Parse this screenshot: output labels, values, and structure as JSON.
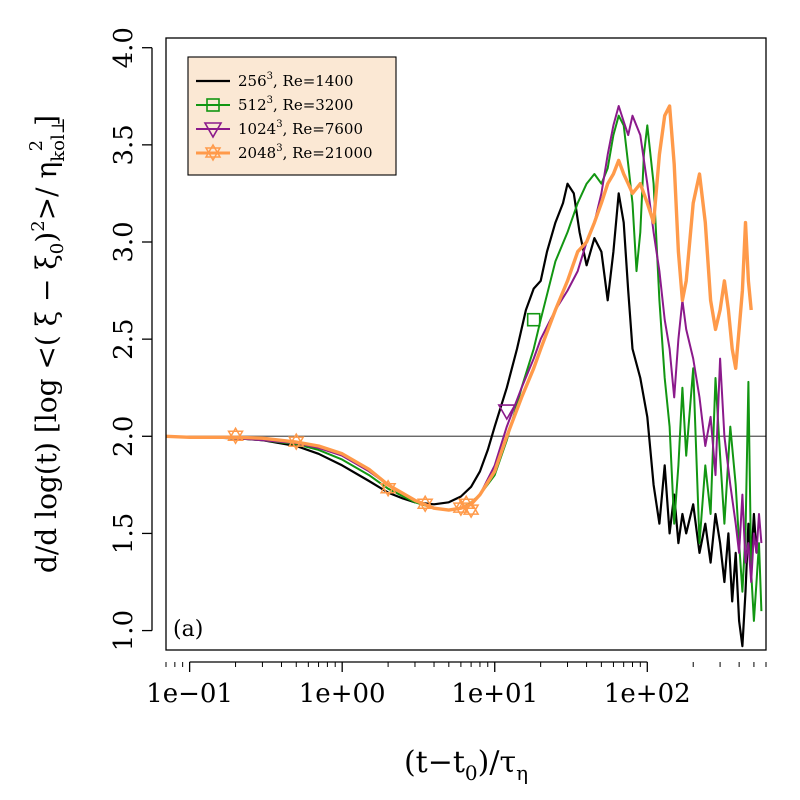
{
  "chart_data": {
    "type": "line",
    "panel_label": "(a)",
    "xlabel": "(t−t",
    "xlabel_sub": "0",
    "xlabel_end": ")/τ",
    "xlabel_sub2": "η",
    "ylabel": "d/d log(t) [log <( ξ − ξ",
    "ylabel_sub": "0",
    "ylabel_mid": ")",
    "ylabel_sup": "2",
    "ylabel_mid2": ">/ η",
    "ylabel_sub2": "kol⊥",
    "ylabel_sup2": "2",
    "ylabel_end": "]",
    "x_scale": "log",
    "xlim": [
      0.07,
      600
    ],
    "ylim": [
      0.9,
      4.05
    ],
    "x_ticks": [
      {
        "value": 0.1,
        "label": "1e−01"
      },
      {
        "value": 1,
        "label": "1e+00"
      },
      {
        "value": 10,
        "label": "1e+01"
      },
      {
        "value": 100,
        "label": "1e+02"
      }
    ],
    "y_ticks": [
      {
        "value": 1.0,
        "label": "1.0"
      },
      {
        "value": 1.5,
        "label": "1.5"
      },
      {
        "value": 2.0,
        "label": "2.0"
      },
      {
        "value": 2.5,
        "label": "2.5"
      },
      {
        "value": 3.0,
        "label": "3.0"
      },
      {
        "value": 3.5,
        "label": "3.5"
      },
      {
        "value": 4.0,
        "label": "4.0"
      }
    ],
    "reference_line_y": 2.0,
    "legend_position": "top-left",
    "legend_bg": "#fbe8d4",
    "series": [
      {
        "name_main": "256",
        "name_sup": "3",
        "name_rest": ", Re=1400",
        "color": "#000000",
        "width": 2.2,
        "marker": "none",
        "points": [
          [
            0.07,
            2.0
          ],
          [
            0.1,
            1.995
          ],
          [
            0.2,
            1.99
          ],
          [
            0.3,
            1.98
          ],
          [
            0.5,
            1.95
          ],
          [
            0.7,
            1.91
          ],
          [
            1,
            1.85
          ],
          [
            1.5,
            1.77
          ],
          [
            2,
            1.71
          ],
          [
            2.5,
            1.68
          ],
          [
            3,
            1.66
          ],
          [
            4,
            1.65
          ],
          [
            5,
            1.66
          ],
          [
            6,
            1.69
          ],
          [
            7,
            1.74
          ],
          [
            8,
            1.82
          ],
          [
            9,
            1.93
          ],
          [
            10,
            2.05
          ],
          [
            12,
            2.25
          ],
          [
            14,
            2.45
          ],
          [
            16,
            2.65
          ],
          [
            18,
            2.76
          ],
          [
            20,
            2.8
          ],
          [
            22,
            2.95
          ],
          [
            25,
            3.1
          ],
          [
            28,
            3.2
          ],
          [
            30,
            3.3
          ],
          [
            33,
            3.25
          ],
          [
            36,
            3.05
          ],
          [
            40,
            2.88
          ],
          [
            45,
            3.02
          ],
          [
            50,
            2.95
          ],
          [
            55,
            2.7
          ],
          [
            60,
            2.95
          ],
          [
            65,
            3.25
          ],
          [
            70,
            3.1
          ],
          [
            75,
            2.75
          ],
          [
            80,
            2.45
          ],
          [
            90,
            2.3
          ],
          [
            100,
            2.1
          ],
          [
            110,
            1.75
          ],
          [
            120,
            1.55
          ],
          [
            130,
            1.85
          ],
          [
            140,
            1.5
          ],
          [
            150,
            1.7
          ],
          [
            160,
            1.45
          ],
          [
            170,
            1.6
          ],
          [
            180,
            1.5
          ],
          [
            200,
            1.65
          ],
          [
            220,
            1.4
          ],
          [
            240,
            1.55
          ],
          [
            260,
            1.35
          ],
          [
            280,
            1.6
          ],
          [
            300,
            1.45
          ],
          [
            320,
            1.25
          ],
          [
            340,
            1.5
          ],
          [
            360,
            1.15
          ],
          [
            380,
            1.4
          ],
          [
            400,
            1.05
          ],
          [
            420,
            0.92
          ],
          [
            440,
            1.2
          ],
          [
            460,
            1.55
          ],
          [
            480,
            1.35
          ],
          [
            500,
            1.6
          ],
          [
            520,
            1.4
          ]
        ]
      },
      {
        "name_main": "512",
        "name_sup": "3",
        "name_rest": ", Re=3200",
        "color": "#129612",
        "width": 2.0,
        "marker": "square",
        "marker_points": [
          [
            18,
            2.6
          ]
        ],
        "points": [
          [
            0.07,
            2.0
          ],
          [
            0.1,
            1.995
          ],
          [
            0.2,
            1.99
          ],
          [
            0.3,
            1.98
          ],
          [
            0.5,
            1.96
          ],
          [
            0.7,
            1.93
          ],
          [
            1,
            1.88
          ],
          [
            1.5,
            1.8
          ],
          [
            2,
            1.73
          ],
          [
            3,
            1.66
          ],
          [
            4,
            1.63
          ],
          [
            5,
            1.62
          ],
          [
            6,
            1.63
          ],
          [
            7,
            1.66
          ],
          [
            8,
            1.7
          ],
          [
            10,
            1.8
          ],
          [
            12,
            1.98
          ],
          [
            15,
            2.25
          ],
          [
            18,
            2.45
          ],
          [
            20,
            2.6
          ],
          [
            25,
            2.9
          ],
          [
            30,
            3.05
          ],
          [
            35,
            3.2
          ],
          [
            40,
            3.3
          ],
          [
            45,
            3.35
          ],
          [
            50,
            3.3
          ],
          [
            55,
            3.38
          ],
          [
            60,
            3.55
          ],
          [
            65,
            3.65
          ],
          [
            70,
            3.6
          ],
          [
            75,
            3.4
          ],
          [
            80,
            3.2
          ],
          [
            85,
            2.85
          ],
          [
            90,
            3.05
          ],
          [
            95,
            3.45
          ],
          [
            100,
            3.6
          ],
          [
            110,
            3.3
          ],
          [
            120,
            2.7
          ],
          [
            130,
            2.3
          ],
          [
            140,
            2.05
          ],
          [
            150,
            1.55
          ],
          [
            160,
            1.85
          ],
          [
            170,
            2.25
          ],
          [
            180,
            1.9
          ],
          [
            200,
            2.35
          ],
          [
            220,
            1.45
          ],
          [
            240,
            1.85
          ],
          [
            260,
            1.6
          ],
          [
            280,
            2.3
          ],
          [
            300,
            1.9
          ],
          [
            320,
            1.55
          ],
          [
            350,
            2.05
          ],
          [
            380,
            1.75
          ],
          [
            400,
            1.45
          ],
          [
            420,
            1.2
          ],
          [
            440,
            1.5
          ],
          [
            460,
            2.28
          ],
          [
            480,
            1.3
          ],
          [
            500,
            1.05
          ],
          [
            520,
            1.25
          ],
          [
            540,
            1.45
          ],
          [
            560,
            1.1
          ]
        ]
      },
      {
        "name_main": "1024",
        "name_sup": "3",
        "name_rest": ", Re=7600",
        "color": "#8b1a8b",
        "width": 2.0,
        "marker": "triangle-down",
        "marker_points": [
          [
            12,
            2.13
          ]
        ],
        "points": [
          [
            0.07,
            2.0
          ],
          [
            0.1,
            1.995
          ],
          [
            0.2,
            1.99
          ],
          [
            0.3,
            1.98
          ],
          [
            0.5,
            1.965
          ],
          [
            0.7,
            1.94
          ],
          [
            1,
            1.9
          ],
          [
            1.5,
            1.82
          ],
          [
            2,
            1.75
          ],
          [
            3,
            1.67
          ],
          [
            4,
            1.63
          ],
          [
            5,
            1.62
          ],
          [
            6,
            1.63
          ],
          [
            7,
            1.65
          ],
          [
            8,
            1.7
          ],
          [
            10,
            1.85
          ],
          [
            12,
            2.05
          ],
          [
            15,
            2.25
          ],
          [
            18,
            2.4
          ],
          [
            20,
            2.5
          ],
          [
            25,
            2.65
          ],
          [
            30,
            2.75
          ],
          [
            35,
            2.85
          ],
          [
            40,
            3.0
          ],
          [
            45,
            3.1
          ],
          [
            50,
            3.25
          ],
          [
            55,
            3.45
          ],
          [
            60,
            3.6
          ],
          [
            65,
            3.7
          ],
          [
            70,
            3.62
          ],
          [
            75,
            3.55
          ],
          [
            80,
            3.65
          ],
          [
            90,
            3.55
          ],
          [
            100,
            3.3
          ],
          [
            110,
            3.05
          ],
          [
            120,
            2.85
          ],
          [
            130,
            2.6
          ],
          [
            140,
            2.45
          ],
          [
            150,
            2.2
          ],
          [
            160,
            2.5
          ],
          [
            170,
            2.7
          ],
          [
            180,
            2.55
          ],
          [
            200,
            2.4
          ],
          [
            220,
            2.2
          ],
          [
            240,
            1.95
          ],
          [
            260,
            2.1
          ],
          [
            280,
            1.8
          ],
          [
            300,
            2.4
          ],
          [
            320,
            2.0
          ],
          [
            350,
            1.75
          ],
          [
            380,
            1.55
          ],
          [
            400,
            1.4
          ],
          [
            420,
            1.7
          ],
          [
            440,
            1.35
          ],
          [
            460,
            1.45
          ],
          [
            480,
            1.25
          ],
          [
            500,
            1.5
          ],
          [
            520,
            1.4
          ],
          [
            540,
            1.6
          ],
          [
            560,
            1.45
          ]
        ]
      },
      {
        "name_main": "2048",
        "name_sup": "3",
        "name_rest": ", Re=21000",
        "color": "#ff9a4a",
        "width": 3.4,
        "marker": "star",
        "marker_points": [
          [
            0.2,
            2.0
          ],
          [
            0.5,
            1.97
          ],
          [
            2,
            1.73
          ],
          [
            3.5,
            1.65
          ],
          [
            6,
            1.63
          ],
          [
            6.5,
            1.65
          ],
          [
            7,
            1.62
          ]
        ],
        "points": [
          [
            0.07,
            2.0
          ],
          [
            0.1,
            1.995
          ],
          [
            0.2,
            1.995
          ],
          [
            0.3,
            1.99
          ],
          [
            0.5,
            1.97
          ],
          [
            0.7,
            1.95
          ],
          [
            1,
            1.91
          ],
          [
            1.5,
            1.83
          ],
          [
            2,
            1.75
          ],
          [
            3,
            1.67
          ],
          [
            4,
            1.63
          ],
          [
            5,
            1.62
          ],
          [
            6,
            1.63
          ],
          [
            7,
            1.65
          ],
          [
            8,
            1.7
          ],
          [
            10,
            1.82
          ],
          [
            12,
            2.0
          ],
          [
            15,
            2.2
          ],
          [
            18,
            2.35
          ],
          [
            20,
            2.45
          ],
          [
            25,
            2.65
          ],
          [
            30,
            2.8
          ],
          [
            35,
            2.95
          ],
          [
            40,
            3.0
          ],
          [
            45,
            3.1
          ],
          [
            50,
            3.2
          ],
          [
            55,
            3.3
          ],
          [
            60,
            3.35
          ],
          [
            65,
            3.42
          ],
          [
            70,
            3.35
          ],
          [
            75,
            3.3
          ],
          [
            80,
            3.25
          ],
          [
            90,
            3.3
          ],
          [
            100,
            3.2
          ],
          [
            110,
            3.1
          ],
          [
            120,
            3.45
          ],
          [
            130,
            3.65
          ],
          [
            140,
            3.7
          ],
          [
            150,
            3.4
          ],
          [
            160,
            2.95
          ],
          [
            170,
            2.7
          ],
          [
            180,
            2.8
          ],
          [
            200,
            3.2
          ],
          [
            220,
            3.35
          ],
          [
            240,
            3.1
          ],
          [
            260,
            2.7
          ],
          [
            280,
            2.55
          ],
          [
            300,
            2.65
          ],
          [
            320,
            2.8
          ],
          [
            340,
            2.65
          ],
          [
            360,
            2.45
          ],
          [
            380,
            2.35
          ],
          [
            400,
            2.55
          ],
          [
            420,
            2.75
          ],
          [
            440,
            3.1
          ],
          [
            460,
            2.8
          ],
          [
            480,
            2.65
          ]
        ]
      }
    ]
  }
}
